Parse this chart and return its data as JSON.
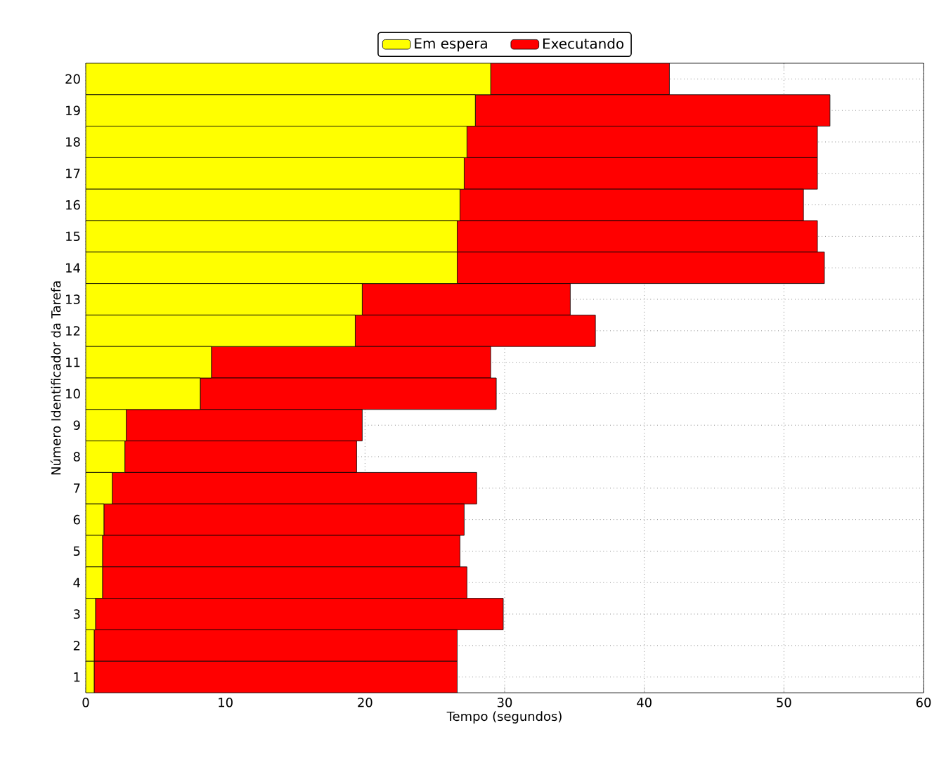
{
  "chart_data": {
    "type": "bar",
    "orientation": "horizontal",
    "stacked": true,
    "xlabel": "Tempo (segundos)",
    "ylabel": "Número Identificador da Tarefa",
    "categories": [
      "20",
      "19",
      "18",
      "17",
      "16",
      "15",
      "14",
      "13",
      "12",
      "11",
      "10",
      "9",
      "8",
      "7",
      "6",
      "5",
      "4",
      "3",
      "2",
      "1"
    ],
    "series": [
      {
        "name": "Em espera",
        "color": "#ffff00",
        "values": [
          29.0,
          27.9,
          27.3,
          27.1,
          26.8,
          26.6,
          26.6,
          19.8,
          19.3,
          9.0,
          8.2,
          2.9,
          2.8,
          1.9,
          1.3,
          1.2,
          1.2,
          0.7,
          0.6,
          0.6
        ]
      },
      {
        "name": "Executando",
        "color": "#ff0000",
        "values": [
          12.8,
          25.4,
          25.1,
          25.3,
          24.6,
          25.8,
          26.3,
          14.9,
          17.2,
          20.0,
          21.2,
          16.9,
          16.6,
          26.1,
          25.8,
          25.6,
          26.1,
          29.2,
          26.0,
          26.0
        ]
      }
    ],
    "xlim": [
      0,
      60
    ],
    "xticks": [
      0,
      10,
      20,
      30,
      40,
      50,
      60
    ],
    "grid": true,
    "legend": "top"
  }
}
